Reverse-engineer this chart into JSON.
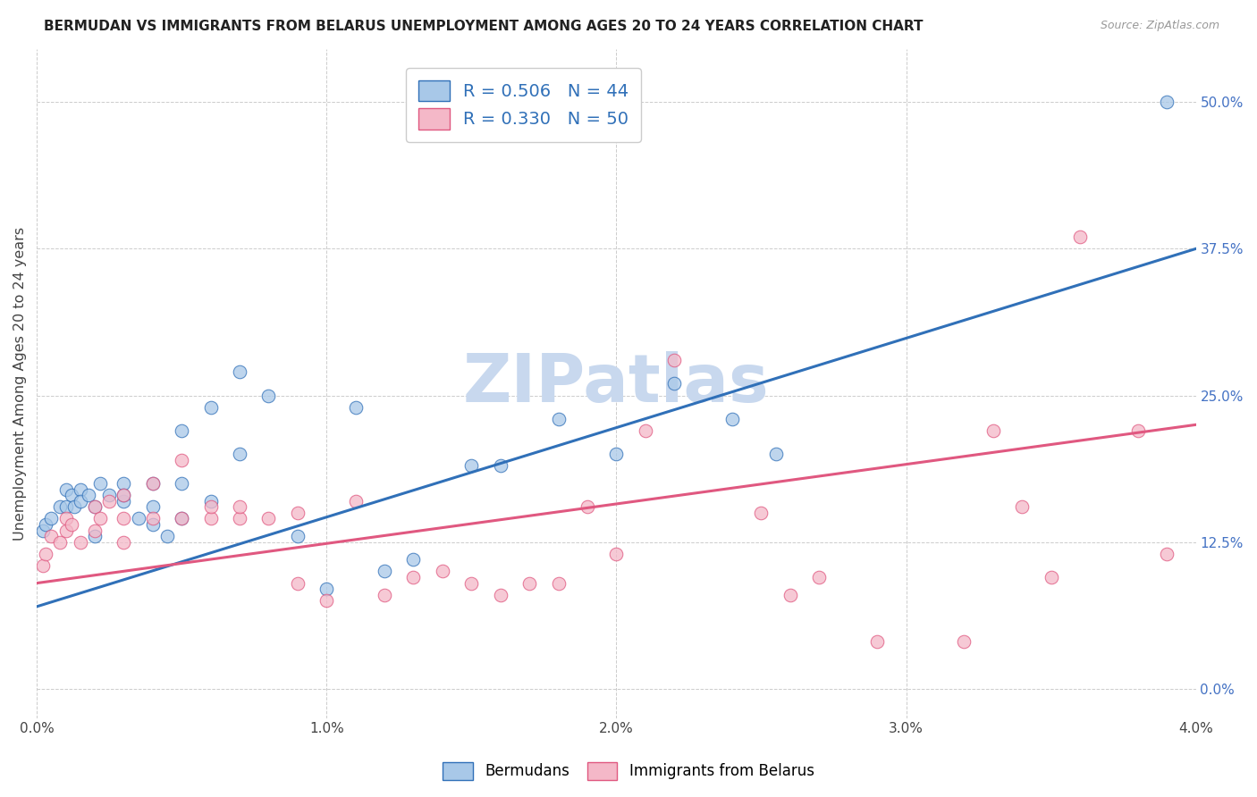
{
  "title": "BERMUDAN VS IMMIGRANTS FROM BELARUS UNEMPLOYMENT AMONG AGES 20 TO 24 YEARS CORRELATION CHART",
  "source": "Source: ZipAtlas.com",
  "ylabel": "Unemployment Among Ages 20 to 24 years",
  "xlim": [
    0.0,
    0.04
  ],
  "ylim": [
    -0.025,
    0.545
  ],
  "xticks": [
    0.0,
    0.01,
    0.02,
    0.03,
    0.04
  ],
  "xtick_labels": [
    "0.0%",
    "1.0%",
    "2.0%",
    "3.0%",
    "4.0%"
  ],
  "yticks": [
    0.0,
    0.125,
    0.25,
    0.375,
    0.5
  ],
  "ytick_labels": [
    "0.0%",
    "12.5%",
    "25.0%",
    "37.5%",
    "50.0%"
  ],
  "blue_color": "#a8c8e8",
  "pink_color": "#f4b8c8",
  "blue_line_color": "#3070b8",
  "pink_line_color": "#e05880",
  "blue_R": 0.506,
  "blue_N": 44,
  "pink_R": 0.33,
  "pink_N": 50,
  "watermark": "ZIPatlas",
  "watermark_color": "#c8d8ee",
  "background_color": "#ffffff",
  "grid_color": "#cccccc",
  "title_color": "#222222",
  "right_tick_color": "#4472c4",
  "blue_trend": [
    0.07,
    0.375
  ],
  "pink_trend": [
    0.09,
    0.225
  ],
  "blue_scatter_x": [
    0.0002,
    0.0003,
    0.0005,
    0.0008,
    0.001,
    0.001,
    0.0012,
    0.0013,
    0.0015,
    0.0015,
    0.0018,
    0.002,
    0.002,
    0.0022,
    0.0025,
    0.003,
    0.003,
    0.003,
    0.0035,
    0.004,
    0.004,
    0.004,
    0.0045,
    0.005,
    0.005,
    0.005,
    0.006,
    0.006,
    0.007,
    0.007,
    0.008,
    0.009,
    0.01,
    0.011,
    0.012,
    0.013,
    0.015,
    0.016,
    0.018,
    0.02,
    0.022,
    0.024,
    0.0255,
    0.039
  ],
  "blue_scatter_y": [
    0.135,
    0.14,
    0.145,
    0.155,
    0.155,
    0.17,
    0.165,
    0.155,
    0.17,
    0.16,
    0.165,
    0.13,
    0.155,
    0.175,
    0.165,
    0.16,
    0.175,
    0.165,
    0.145,
    0.14,
    0.155,
    0.175,
    0.13,
    0.145,
    0.175,
    0.22,
    0.16,
    0.24,
    0.2,
    0.27,
    0.25,
    0.13,
    0.085,
    0.24,
    0.1,
    0.11,
    0.19,
    0.19,
    0.23,
    0.2,
    0.26,
    0.23,
    0.2,
    0.5
  ],
  "pink_scatter_x": [
    0.0002,
    0.0003,
    0.0005,
    0.0008,
    0.001,
    0.001,
    0.0012,
    0.0015,
    0.002,
    0.002,
    0.0022,
    0.0025,
    0.003,
    0.003,
    0.003,
    0.004,
    0.004,
    0.005,
    0.005,
    0.006,
    0.006,
    0.007,
    0.007,
    0.008,
    0.009,
    0.009,
    0.01,
    0.011,
    0.012,
    0.013,
    0.014,
    0.015,
    0.016,
    0.017,
    0.018,
    0.019,
    0.02,
    0.021,
    0.022,
    0.025,
    0.026,
    0.027,
    0.029,
    0.032,
    0.033,
    0.034,
    0.035,
    0.036,
    0.038,
    0.039
  ],
  "pink_scatter_y": [
    0.105,
    0.115,
    0.13,
    0.125,
    0.135,
    0.145,
    0.14,
    0.125,
    0.135,
    0.155,
    0.145,
    0.16,
    0.145,
    0.165,
    0.125,
    0.145,
    0.175,
    0.145,
    0.195,
    0.145,
    0.155,
    0.145,
    0.155,
    0.145,
    0.15,
    0.09,
    0.075,
    0.16,
    0.08,
    0.095,
    0.1,
    0.09,
    0.08,
    0.09,
    0.09,
    0.155,
    0.115,
    0.22,
    0.28,
    0.15,
    0.08,
    0.095,
    0.04,
    0.04,
    0.22,
    0.155,
    0.095,
    0.385,
    0.22,
    0.115
  ]
}
